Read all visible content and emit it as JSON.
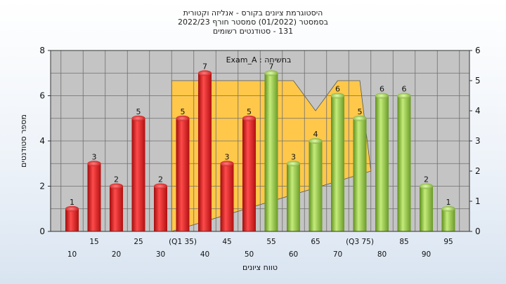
{
  "chart_data": {
    "type": "bar",
    "title_lines": [
      "היסטוגרמת ציונים בקורס - אנליזה וקטורית",
      "בסמסטר  (01/2022)  סמסטר חורף 2022/23",
      "131 - סטודנטים רשומים"
    ],
    "legend": "Exam_A : בחשיחה",
    "xlabel": "טווח ציונים",
    "ylabel": "מספר סטודנטים",
    "ylim": [
      0,
      8
    ],
    "y2lim": [
      0,
      6
    ],
    "y_ticks": [
      "0",
      "2",
      "4",
      "6",
      "8"
    ],
    "y2_ticks": [
      "0",
      "1",
      "2",
      "3",
      "4",
      "5",
      "6"
    ],
    "categories": [
      "10",
      "15",
      "20",
      "25",
      "30",
      "(Q1 35)",
      "40",
      "45",
      "50",
      "55",
      "60",
      "65",
      "70",
      "(Q3 75)",
      "80",
      "85",
      "90",
      "95"
    ],
    "values": [
      1,
      3,
      2,
      5,
      2,
      5,
      7,
      3,
      5,
      7,
      3,
      4,
      6,
      5,
      6,
      6,
      2,
      1
    ],
    "colors": {
      "red": "#e02020",
      "green": "#8cc43c",
      "area": "#ffc84a",
      "plot_bg": "#c4c4c4",
      "grid": "#6e6e6e"
    },
    "band_polygon_y2": [
      [
        32.5,
        0
      ],
      [
        32.5,
        5
      ],
      [
        35,
        5
      ],
      [
        40,
        5
      ],
      [
        45,
        5
      ],
      [
        50,
        5
      ],
      [
        55,
        5
      ],
      [
        60,
        5
      ],
      [
        65,
        4
      ],
      [
        70,
        5
      ],
      [
        75,
        5
      ],
      [
        77.5,
        2
      ]
    ]
  }
}
